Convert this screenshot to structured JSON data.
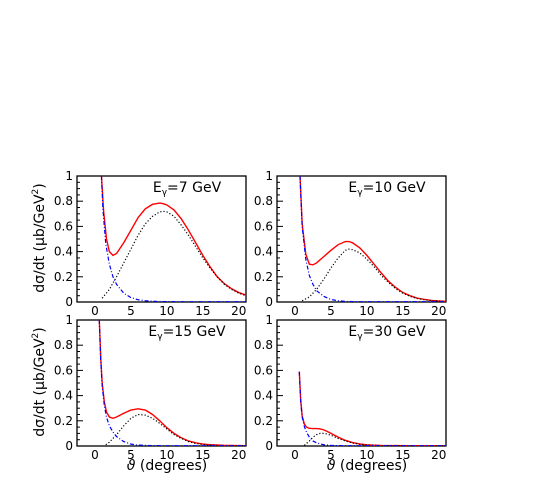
{
  "figure": {
    "ylabel_prefix": "dσ/dt (",
    "ylabel_mu": "μ",
    "ylabel_mid": "b/GeV",
    "ylabel_exp": "2",
    "ylabel_suffix": ")",
    "xlabel_symbol": "ϑ",
    "xlabel_text": " (degrees)"
  },
  "colors": {
    "total": "#ff0000",
    "background": "#000000",
    "forward": "#0000ff",
    "axes": "#000000"
  },
  "chart_data": [
    {
      "type": "line",
      "label_prefix": "E",
      "label_sub": "γ",
      "label_suffix": "=7 GeV",
      "xlim": [
        -2.5,
        21
      ],
      "ylim": [
        0,
        1
      ],
      "xticks": [
        0,
        5,
        10,
        15,
        20
      ],
      "xtick_labels": [
        "0",
        "5",
        "10",
        "15",
        "20"
      ],
      "yticks": [
        0,
        0.2,
        0.4,
        0.6,
        0.8,
        1
      ],
      "ytick_labels": [
        "0",
        "0.2",
        "0.4",
        "0.6",
        "0.8",
        "1"
      ],
      "series": [
        {
          "style": "solid",
          "color": "#ff0000",
          "x": [
            0.9,
            1.2,
            1.6,
            2.0,
            2.5,
            3.0,
            4.0,
            5.0,
            6.0,
            7.0,
            8.0,
            9.0,
            9.5,
            10.0,
            11.0,
            12.0,
            13.0,
            14.0,
            15.0,
            16.0,
            17.0,
            18.0,
            19.0,
            20.0,
            21.0
          ],
          "y": [
            1.0,
            0.72,
            0.5,
            0.4,
            0.37,
            0.385,
            0.47,
            0.57,
            0.67,
            0.74,
            0.775,
            0.785,
            0.78,
            0.77,
            0.73,
            0.66,
            0.57,
            0.47,
            0.37,
            0.28,
            0.2,
            0.145,
            0.105,
            0.075,
            0.055
          ]
        },
        {
          "style": "dotted",
          "color": "#000000",
          "x": [
            1.0,
            2.0,
            3.0,
            4.0,
            5.0,
            6.0,
            7.0,
            8.0,
            9.0,
            9.5,
            10.0,
            11.0,
            12.0,
            13.0,
            14.0,
            15.0,
            16.0,
            17.0,
            18.0,
            19.0,
            20.0,
            21.0
          ],
          "y": [
            0.03,
            0.1,
            0.2,
            0.31,
            0.42,
            0.53,
            0.62,
            0.68,
            0.715,
            0.72,
            0.715,
            0.68,
            0.61,
            0.53,
            0.44,
            0.35,
            0.27,
            0.2,
            0.14,
            0.1,
            0.07,
            0.05
          ]
        },
        {
          "style": "dashdot",
          "color": "#0000ff",
          "x": [
            0.9,
            1.1,
            1.5,
            2.0,
            2.5,
            3.0,
            4.0,
            5.0,
            6.0,
            7.0,
            8.0,
            9.0,
            10.0,
            12.0,
            14.0,
            16.0,
            18.0,
            20.0,
            21.0
          ],
          "y": [
            1.0,
            0.74,
            0.46,
            0.3,
            0.2,
            0.14,
            0.07,
            0.035,
            0.018,
            0.01,
            0.006,
            0.004,
            0.003,
            0.002,
            0.002,
            0.002,
            0.002,
            0.002,
            0.002
          ]
        }
      ]
    },
    {
      "type": "line",
      "label_prefix": "E",
      "label_sub": "γ",
      "label_suffix": "=10 GeV",
      "xlim": [
        -2.5,
        21
      ],
      "ylim": [
        0,
        1
      ],
      "xticks": [
        0,
        5,
        10,
        15,
        20
      ],
      "xtick_labels": [
        "0",
        "5",
        "10",
        "15",
        "20"
      ],
      "yticks": [
        0,
        0.2,
        0.4,
        0.6,
        0.8,
        1
      ],
      "ytick_labels": [
        "0",
        "0.2",
        "0.4",
        "0.6",
        "0.8",
        "1"
      ],
      "series": [
        {
          "style": "solid",
          "color": "#ff0000",
          "x": [
            0.7,
            1.0,
            1.5,
            2.0,
            2.5,
            3.0,
            4.0,
            5.0,
            6.0,
            7.0,
            7.5,
            8.0,
            9.0,
            10.0,
            11.0,
            12.0,
            13.0,
            14.0,
            15.0,
            16.0,
            17.0,
            18.0,
            19.0,
            20.0,
            21.0
          ],
          "y": [
            1.0,
            0.62,
            0.38,
            0.3,
            0.295,
            0.31,
            0.36,
            0.41,
            0.455,
            0.48,
            0.48,
            0.47,
            0.43,
            0.37,
            0.3,
            0.23,
            0.165,
            0.115,
            0.075,
            0.05,
            0.03,
            0.02,
            0.012,
            0.008,
            0.005
          ]
        },
        {
          "style": "dotted",
          "color": "#000000",
          "x": [
            1.0,
            2.0,
            3.0,
            4.0,
            5.0,
            6.0,
            7.0,
            7.5,
            8.0,
            9.0,
            10.0,
            11.0,
            12.0,
            13.0,
            14.0,
            15.0,
            16.0,
            17.0,
            18.0,
            19.0,
            20.0,
            21.0
          ],
          "y": [
            0.01,
            0.04,
            0.1,
            0.18,
            0.27,
            0.35,
            0.41,
            0.42,
            0.415,
            0.39,
            0.34,
            0.28,
            0.21,
            0.155,
            0.105,
            0.07,
            0.045,
            0.028,
            0.018,
            0.011,
            0.007,
            0.004
          ]
        },
        {
          "style": "dashdot",
          "color": "#0000ff",
          "x": [
            0.7,
            1.0,
            1.5,
            2.0,
            2.5,
            3.0,
            4.0,
            5.0,
            6.0,
            7.0,
            8.0,
            10.0,
            12.0,
            14.0,
            16.0,
            18.0,
            20.0,
            21.0
          ],
          "y": [
            1.0,
            0.6,
            0.34,
            0.21,
            0.14,
            0.09,
            0.045,
            0.02,
            0.01,
            0.005,
            0.003,
            0.002,
            0.002,
            0.002,
            0.002,
            0.002,
            0.002,
            0.002
          ]
        }
      ]
    },
    {
      "type": "line",
      "label_prefix": "E",
      "label_sub": "γ",
      "label_suffix": "=15 GeV",
      "xlim": [
        -2.5,
        21
      ],
      "ylim": [
        0,
        1
      ],
      "xticks": [
        0,
        5,
        10,
        15,
        20
      ],
      "xtick_labels": [
        "0",
        "5",
        "10",
        "15",
        "20"
      ],
      "yticks": [
        0,
        0.2,
        0.4,
        0.6,
        0.8,
        1
      ],
      "ytick_labels": [
        "0",
        "0.2",
        "0.4",
        "0.6",
        "0.8",
        "1"
      ],
      "series": [
        {
          "style": "solid",
          "color": "#ff0000",
          "x": [
            0.6,
            0.8,
            1.0,
            1.3,
            1.6,
            2.0,
            2.5,
            3.0,
            4.0,
            5.0,
            6.0,
            7.0,
            8.0,
            9.0,
            10.0,
            11.0,
            12.0,
            13.0,
            14.0,
            15.0,
            16.0,
            18.0,
            20.0,
            21.0
          ],
          "y": [
            1.0,
            0.7,
            0.5,
            0.35,
            0.27,
            0.23,
            0.22,
            0.23,
            0.26,
            0.285,
            0.295,
            0.285,
            0.25,
            0.2,
            0.145,
            0.1,
            0.065,
            0.04,
            0.025,
            0.015,
            0.01,
            0.005,
            0.003,
            0.002
          ]
        },
        {
          "style": "dotted",
          "color": "#000000",
          "x": [
            1.5,
            2.0,
            3.0,
            4.0,
            5.0,
            6.0,
            7.0,
            8.0,
            9.0,
            10.0,
            11.0,
            12.0,
            13.0,
            14.0,
            15.0,
            16.0,
            18.0,
            20.0,
            21.0
          ],
          "y": [
            0.01,
            0.03,
            0.09,
            0.16,
            0.22,
            0.25,
            0.245,
            0.22,
            0.18,
            0.135,
            0.09,
            0.06,
            0.035,
            0.02,
            0.012,
            0.007,
            0.003,
            0.002,
            0.001
          ]
        },
        {
          "style": "dashdot",
          "color": "#0000ff",
          "x": [
            0.6,
            0.8,
            1.0,
            1.3,
            1.6,
            2.0,
            2.5,
            3.0,
            4.0,
            5.0,
            6.0,
            8.0,
            10.0,
            12.0,
            14.0,
            16.0,
            18.0,
            20.0,
            21.0
          ],
          "y": [
            1.0,
            0.68,
            0.48,
            0.32,
            0.23,
            0.16,
            0.11,
            0.075,
            0.035,
            0.015,
            0.007,
            0.003,
            0.002,
            0.002,
            0.002,
            0.002,
            0.002,
            0.002,
            0.002
          ]
        }
      ]
    },
    {
      "type": "line",
      "label_prefix": "E",
      "label_sub": "γ",
      "label_suffix": "=30 GeV",
      "xlim": [
        -2.5,
        21
      ],
      "ylim": [
        0,
        1
      ],
      "xticks": [
        0,
        5,
        10,
        15,
        20
      ],
      "xtick_labels": [
        "0",
        "5",
        "10",
        "15",
        "20"
      ],
      "yticks": [
        0,
        0.2,
        0.4,
        0.6,
        0.8,
        1
      ],
      "ytick_labels": [
        "0",
        "0.2",
        "0.4",
        "0.6",
        "0.8",
        "1"
      ],
      "series": [
        {
          "style": "solid",
          "color": "#ff0000",
          "x": [
            0.6,
            0.8,
            1.0,
            1.3,
            1.6,
            2.0,
            2.5,
            3.0,
            3.5,
            4.0,
            4.5,
            5.0,
            6.0,
            7.0,
            8.0,
            9.0,
            10.0,
            11.0,
            12.0,
            14.0,
            16.0,
            18.0,
            20.0,
            21.0
          ],
          "y": [
            0.59,
            0.36,
            0.24,
            0.175,
            0.15,
            0.14,
            0.138,
            0.138,
            0.135,
            0.128,
            0.115,
            0.1,
            0.07,
            0.045,
            0.027,
            0.016,
            0.009,
            0.006,
            0.004,
            0.003,
            0.002,
            0.002,
            0.002,
            0.002
          ]
        },
        {
          "style": "dotted",
          "color": "#000000",
          "x": [
            1.3,
            2.0,
            2.5,
            3.0,
            3.5,
            4.0,
            4.5,
            5.0,
            6.0,
            7.0,
            8.0,
            9.0,
            10.0,
            12.0,
            14.0,
            16.0,
            18.0,
            20.0,
            21.0
          ],
          "y": [
            0.005,
            0.04,
            0.07,
            0.09,
            0.1,
            0.1,
            0.095,
            0.085,
            0.06,
            0.04,
            0.024,
            0.014,
            0.008,
            0.003,
            0.002,
            0.001,
            0.001,
            0.001,
            0.001
          ]
        },
        {
          "style": "dashdot",
          "color": "#0000ff",
          "x": [
            0.6,
            0.8,
            1.0,
            1.3,
            1.6,
            2.0,
            2.5,
            3.0,
            4.0,
            5.0,
            6.0,
            8.0,
            10.0,
            12.0,
            14.0,
            16.0,
            18.0,
            20.0,
            21.0
          ],
          "y": [
            0.59,
            0.35,
            0.23,
            0.155,
            0.11,
            0.07,
            0.04,
            0.025,
            0.01,
            0.005,
            0.003,
            0.002,
            0.002,
            0.002,
            0.002,
            0.002,
            0.002,
            0.002,
            0.002
          ]
        }
      ]
    }
  ]
}
